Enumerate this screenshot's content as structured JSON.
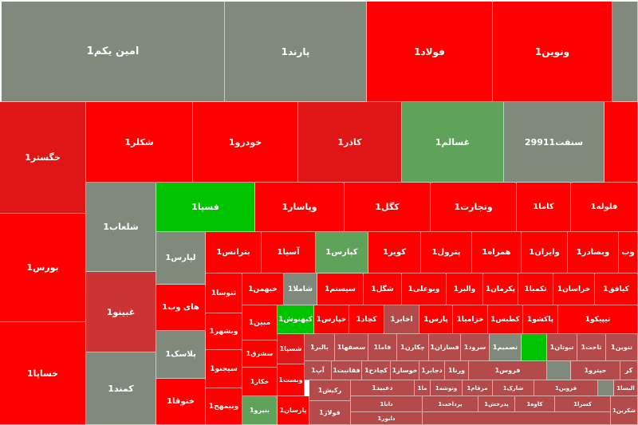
{
  "colors": {
    "red": "#ff0000",
    "dark_red": "#e01515",
    "mid_red": "#cc3333",
    "muted_red": "#b44a4a",
    "grey": "#7f8a7c",
    "green": "#00c400",
    "soft_green": "#5fa35b"
  },
  "tiles": [
    {
      "label": "امین یکم1",
      "color": "grey"
    },
    {
      "label": "پارند1",
      "color": "grey"
    },
    {
      "label": "فولاد1",
      "color": "red"
    },
    {
      "label": "ونوین1",
      "color": "red"
    },
    {
      "label": "",
      "color": "grey"
    },
    {
      "label": "خگستر1",
      "color": "dark_red"
    },
    {
      "label": "شکلر1",
      "color": "red"
    },
    {
      "label": "خودرو1",
      "color": "red"
    },
    {
      "label": "کاذر1",
      "color": "dark_red"
    },
    {
      "label": "غسالم1",
      "color": "soft_green"
    },
    {
      "label": "سنفت29911",
      "color": "grey"
    },
    {
      "label": "",
      "color": "red"
    },
    {
      "label": "بورس1",
      "color": "red"
    },
    {
      "label": "خساپا1",
      "color": "red"
    },
    {
      "label": "شلعاب1",
      "color": "grey"
    },
    {
      "label": "فسپا1",
      "color": "green"
    },
    {
      "label": "وپاسار1",
      "color": "red"
    },
    {
      "label": "کگل1",
      "color": "red"
    },
    {
      "label": "وتجارت1",
      "color": "red"
    },
    {
      "label": "کاما1",
      "color": "red"
    },
    {
      "label": "فلوله1",
      "color": "red"
    },
    {
      "label": "لپارس1",
      "color": "grey"
    },
    {
      "label": "بترانس1",
      "color": "red"
    },
    {
      "label": "آسیا1",
      "color": "red"
    },
    {
      "label": "کپارس1",
      "color": "soft_green"
    },
    {
      "label": "کویر1",
      "color": "red"
    },
    {
      "label": "پترول1",
      "color": "red"
    },
    {
      "label": "همراه1",
      "color": "red"
    },
    {
      "label": "وایران1",
      "color": "red"
    },
    {
      "label": "وبصادر1",
      "color": "red"
    },
    {
      "label": "وب",
      "color": "red"
    },
    {
      "label": "غبینو1",
      "color": "mid_red"
    },
    {
      "label": "های وب1",
      "color": "red"
    },
    {
      "label": "ثنوسا1",
      "color": "red"
    },
    {
      "label": "خبهمن1",
      "color": "red"
    },
    {
      "label": "شاملا1",
      "color": "grey"
    },
    {
      "label": "سیستم1",
      "color": "red"
    },
    {
      "label": "شگل1",
      "color": "red"
    },
    {
      "label": "وبوعلی1",
      "color": "red"
    },
    {
      "label": "والبر1",
      "color": "red"
    },
    {
      "label": "پکرمان1",
      "color": "red"
    },
    {
      "label": "تکمبا1",
      "color": "red"
    },
    {
      "label": "خراسان1",
      "color": "red"
    },
    {
      "label": "کیافق1",
      "color": "red"
    },
    {
      "label": "کمند1",
      "color": "grey"
    },
    {
      "label": "پلاسک1",
      "color": "grey"
    },
    {
      "label": "وبشهر1",
      "color": "red"
    },
    {
      "label": "مبین1",
      "color": "red"
    },
    {
      "label": "کبهنوش1",
      "color": "green"
    },
    {
      "label": "خپارس1",
      "color": "red"
    },
    {
      "label": "کچاد1",
      "color": "red"
    },
    {
      "label": "اخابر1",
      "color": "muted_red"
    },
    {
      "label": "پارس1",
      "color": "red"
    },
    {
      "label": "خزامیا1",
      "color": "red"
    },
    {
      "label": "کطبس1",
      "color": "red"
    },
    {
      "label": "پاکشو1",
      "color": "red"
    },
    {
      "label": "تیپیکو1",
      "color": "red"
    },
    {
      "label": "ختوقا1",
      "color": "red"
    },
    {
      "label": "سیجنو1",
      "color": "red"
    },
    {
      "label": "سشرق1",
      "color": "red"
    },
    {
      "label": "شسپا1",
      "color": "dark_red"
    },
    {
      "label": "بالبر1",
      "color": "muted_red"
    },
    {
      "label": "سصفها1",
      "color": "muted_red"
    },
    {
      "label": "فاما1",
      "color": "muted_red"
    },
    {
      "label": "چکارن1",
      "color": "muted_red"
    },
    {
      "label": "فسازان1",
      "color": "muted_red"
    },
    {
      "label": "سرود1",
      "color": "muted_red"
    },
    {
      "label": "تصمیم1",
      "color": "grey"
    },
    {
      "label": "",
      "color": "green"
    },
    {
      "label": "تبوتان1",
      "color": "muted_red"
    },
    {
      "label": "ثاخت1",
      "color": "muted_red"
    },
    {
      "label": "تنوین1",
      "color": "muted_red"
    },
    {
      "label": "وبیمهح1",
      "color": "red"
    },
    {
      "label": "خکار1",
      "color": "red"
    },
    {
      "label": "وبست1",
      "color": "red"
    },
    {
      "label": "آپ1",
      "color": "muted_red"
    },
    {
      "label": "فقانبت1",
      "color": "muted_red"
    },
    {
      "label": "کچادح1",
      "color": "muted_red"
    },
    {
      "label": "خوساز1",
      "color": "muted_red"
    },
    {
      "label": "دجابر1",
      "color": "muted_red"
    },
    {
      "label": "ورنا1",
      "color": "muted_red"
    },
    {
      "label": "فروس1",
      "color": "muted_red"
    },
    {
      "label": "",
      "color": "grey"
    },
    {
      "label": "حپترو1",
      "color": "muted_red"
    },
    {
      "label": "کر",
      "color": "muted_red"
    },
    {
      "label": "بنیرو1",
      "color": "soft_green"
    },
    {
      "label": "پارسان1",
      "color": "red"
    },
    {
      "label": "رکیش1",
      "color": "muted_red"
    },
    {
      "label": "دعبید1",
      "color": "muted_red"
    },
    {
      "label": "ما1",
      "color": "muted_red"
    },
    {
      "label": "وتوشه1",
      "color": "muted_red"
    },
    {
      "label": "مرقام1",
      "color": "muted_red"
    },
    {
      "label": "شارک1",
      "color": "muted_red"
    },
    {
      "label": "قزوین1",
      "color": "muted_red"
    },
    {
      "label": "",
      "color": "grey"
    },
    {
      "label": "البسا1",
      "color": "muted_red"
    },
    {
      "label": "فولاژ1",
      "color": "muted_red"
    },
    {
      "label": "دانا1",
      "color": "muted_red"
    },
    {
      "label": "پرداخت1",
      "color": "muted_red"
    },
    {
      "label": "پدرخش1",
      "color": "muted_red"
    },
    {
      "label": "کاوه1",
      "color": "muted_red"
    },
    {
      "label": "کسرا1",
      "color": "muted_red"
    },
    {
      "label": "شکربن1",
      "color": "muted_red"
    },
    {
      "label": "دابور1",
      "color": "muted_red"
    },
    {
      "label": "",
      "color": "muted_red"
    }
  ]
}
